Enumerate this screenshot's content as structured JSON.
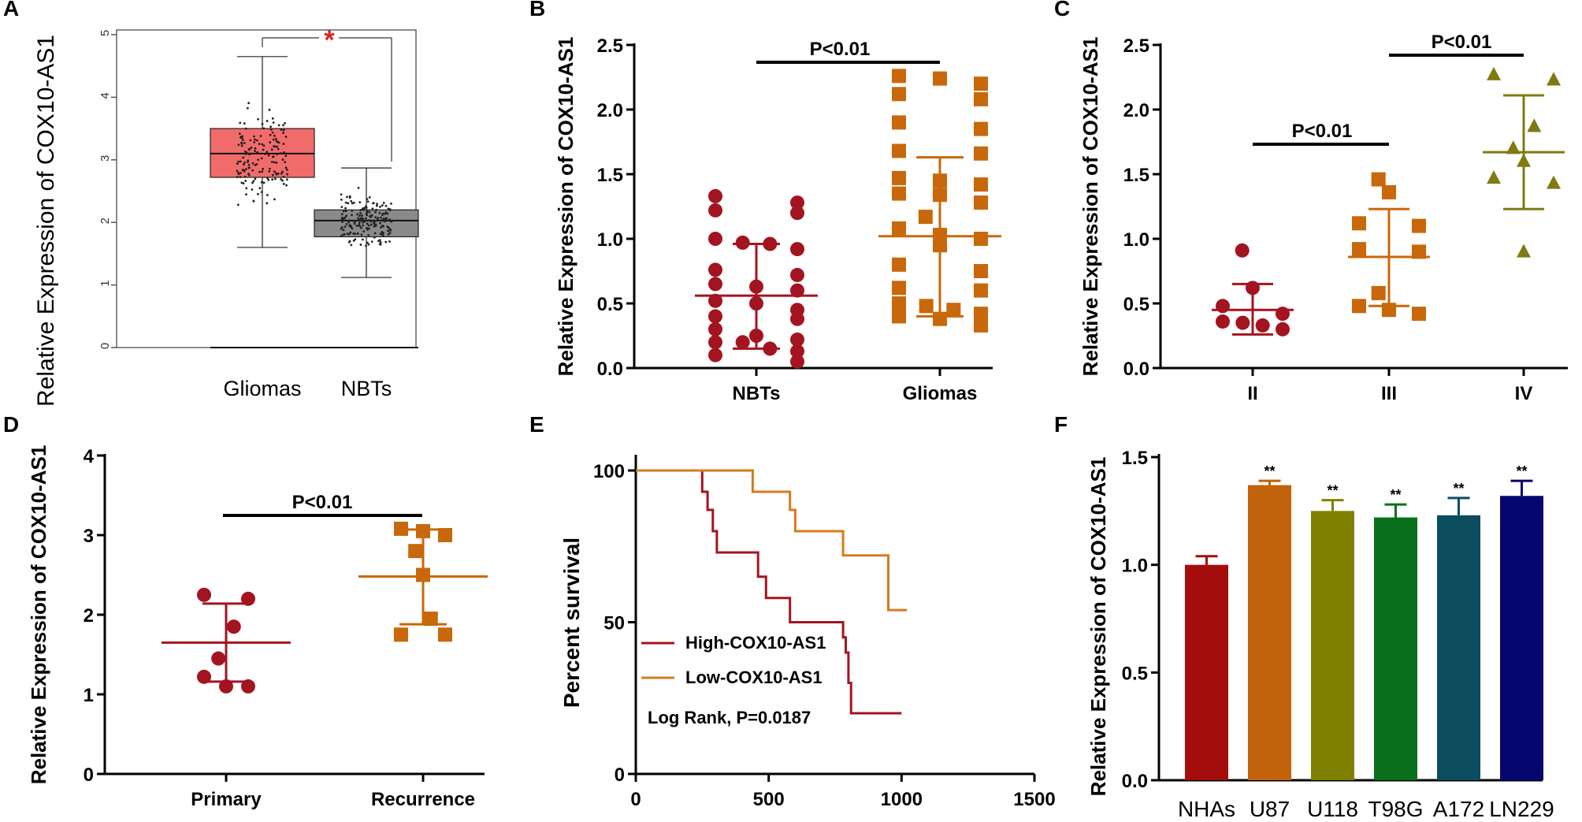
{
  "panel_labels": [
    "A",
    "B",
    "C",
    "D",
    "E",
    "F"
  ],
  "colors": {
    "glioma_box": "#f26b6b",
    "nbt_box": "#8a8a8a",
    "red": "#a31420",
    "orange": "#c8680a",
    "olive": "#7f7a12",
    "high_line": "#a31420",
    "low_line": "#d47b1e",
    "significance_star": "#e0201b",
    "bar_colors": [
      "#a50d0d",
      "#c2620a",
      "#808000",
      "#0a6f1a",
      "#0b4d5e",
      "#06066e"
    ]
  },
  "chart_data": [
    {
      "panel": "A",
      "type": "box",
      "ylabel": "Relative Expression of COX10-AS1",
      "ylim": [
        0,
        5
      ],
      "yticks": [
        "0",
        "1",
        "2",
        "3",
        "4",
        "5"
      ],
      "categories": [
        "Gliomas",
        "NBTs"
      ],
      "significance": "*",
      "boxes": [
        {
          "name": "Gliomas",
          "min": 1.6,
          "q1": 2.72,
          "median": 3.1,
          "q3": 3.5,
          "max": 4.65,
          "n_points": 160
        },
        {
          "name": "NBTs",
          "min": 1.12,
          "q1": 1.77,
          "median": 2.03,
          "q3": 2.2,
          "max": 2.87,
          "n_points": 190
        }
      ]
    },
    {
      "panel": "B",
      "type": "scatter",
      "ylabel": "Relative Expression of COX10-AS1",
      "ylim": [
        0,
        2.5
      ],
      "yticks": [
        "0.0",
        "0.5",
        "1.0",
        "1.5",
        "2.0",
        "2.5"
      ],
      "categories": [
        "NBTs",
        "Gliomas"
      ],
      "comparison": "P<0.01",
      "series": [
        {
          "name": "NBTs",
          "marker": "circle",
          "mean": 0.56,
          "sd_low": 0.15,
          "sd_high": 0.96,
          "values": [
            1.33,
            1.28,
            1.22,
            1.2,
            1.0,
            0.97,
            0.96,
            0.92,
            0.76,
            0.72,
            0.65,
            0.63,
            0.6,
            0.52,
            0.5,
            0.45,
            0.4,
            0.38,
            0.3,
            0.25,
            0.22,
            0.2,
            0.2,
            0.15,
            0.13,
            0.1,
            0.05
          ]
        },
        {
          "name": "Gliomas",
          "marker": "square",
          "mean": 1.02,
          "sd_low": 0.4,
          "sd_high": 1.63,
          "values": [
            2.26,
            2.24,
            2.2,
            2.12,
            2.08,
            1.9,
            1.85,
            1.68,
            1.66,
            1.47,
            1.45,
            1.42,
            1.35,
            1.34,
            1.28,
            1.17,
            1.08,
            1.03,
            1.0,
            0.95,
            0.8,
            0.75,
            0.62,
            0.6,
            0.5,
            0.48,
            0.45,
            0.42,
            0.4,
            0.38,
            0.33
          ]
        }
      ]
    },
    {
      "panel": "C",
      "type": "scatter",
      "ylabel": "Relative Expression of COX10-AS1",
      "ylim": [
        0,
        2.5
      ],
      "yticks": [
        "0.0",
        "0.5",
        "1.0",
        "1.5",
        "2.0",
        "2.5"
      ],
      "categories": [
        "II",
        "III",
        "IV"
      ],
      "comparisons": [
        "P<0.01",
        "P<0.01"
      ],
      "series": [
        {
          "name": "II",
          "marker": "circle",
          "mean": 0.45,
          "sd_low": 0.26,
          "sd_high": 0.65,
          "values": [
            0.91,
            0.62,
            0.48,
            0.42,
            0.36,
            0.35,
            0.33,
            0.3
          ]
        },
        {
          "name": "III",
          "marker": "square",
          "mean": 0.86,
          "sd_low": 0.48,
          "sd_high": 1.23,
          "values": [
            1.46,
            1.36,
            1.12,
            1.1,
            0.92,
            0.9,
            0.58,
            0.48,
            0.45,
            0.42
          ]
        },
        {
          "name": "IV",
          "marker": "triangle",
          "mean": 1.67,
          "sd_low": 1.23,
          "sd_high": 2.11,
          "values": [
            2.27,
            2.23,
            1.87,
            1.7,
            1.6,
            1.47,
            1.43,
            0.9
          ]
        }
      ]
    },
    {
      "panel": "D",
      "type": "scatter",
      "ylabel": "Relative Expression of COX10-AS1",
      "ylim": [
        0,
        4
      ],
      "yticks": [
        "0",
        "1",
        "2",
        "3",
        "4"
      ],
      "categories": [
        "Primary",
        "Recurrence"
      ],
      "comparison": "P<0.01",
      "series": [
        {
          "name": "Primary",
          "marker": "circle",
          "mean": 1.65,
          "sd_low": 1.16,
          "sd_high": 2.14,
          "values": [
            2.25,
            2.2,
            1.85,
            1.45,
            1.22,
            1.1,
            1.1
          ]
        },
        {
          "name": "Recurrence",
          "marker": "square",
          "mean": 2.48,
          "sd_low": 1.88,
          "sd_high": 3.07,
          "values": [
            3.08,
            3.05,
            3.0,
            2.8,
            2.5,
            1.95,
            1.75,
            1.75
          ]
        }
      ]
    },
    {
      "panel": "E",
      "type": "line",
      "ylabel": "Percent survival",
      "ylim": [
        0,
        100
      ],
      "yticks": [
        "0",
        "50",
        "100"
      ],
      "xlim": [
        0,
        1500
      ],
      "xticks": [
        "0",
        "500",
        "1000",
        "1500"
      ],
      "annotation": "Log Rank,  P=0.0187",
      "series": [
        {
          "name": "High-COX10-AS1",
          "steps": [
            [
              0,
              100
            ],
            [
              250,
              100
            ],
            [
              250,
              93
            ],
            [
              270,
              93
            ],
            [
              270,
              87
            ],
            [
              290,
              87
            ],
            [
              290,
              80
            ],
            [
              305,
              80
            ],
            [
              305,
              73
            ],
            [
              460,
              73
            ],
            [
              460,
              65
            ],
            [
              490,
              65
            ],
            [
              490,
              58
            ],
            [
              580,
              58
            ],
            [
              580,
              50
            ],
            [
              780,
              50
            ],
            [
              780,
              45
            ],
            [
              790,
              45
            ],
            [
              790,
              40
            ],
            [
              800,
              40
            ],
            [
              800,
              30
            ],
            [
              810,
              30
            ],
            [
              810,
              20
            ],
            [
              1000,
              20
            ]
          ]
        },
        {
          "name": "Low-COX10-AS1",
          "steps": [
            [
              0,
              100
            ],
            [
              440,
              100
            ],
            [
              440,
              93
            ],
            [
              580,
              93
            ],
            [
              580,
              87
            ],
            [
              600,
              87
            ],
            [
              600,
              80
            ],
            [
              780,
              80
            ],
            [
              780,
              72
            ],
            [
              950,
              72
            ],
            [
              950,
              54
            ],
            [
              1020,
              54
            ]
          ]
        }
      ]
    },
    {
      "panel": "F",
      "type": "bar",
      "ylabel": "Relative Expression of COX10-AS1",
      "ylim": [
        0,
        1.5
      ],
      "yticks": [
        "0.0",
        "0.5",
        "1.0",
        "1.5"
      ],
      "categories": [
        "NHAs",
        "U87",
        "U118",
        "T98G",
        "A172",
        "LN229"
      ],
      "values": [
        1.0,
        1.37,
        1.25,
        1.22,
        1.23,
        1.32
      ],
      "errors": [
        0.04,
        0.02,
        0.05,
        0.06,
        0.08,
        0.07
      ],
      "significance": [
        "",
        "**",
        "**",
        "**",
        "**",
        "**"
      ]
    }
  ]
}
